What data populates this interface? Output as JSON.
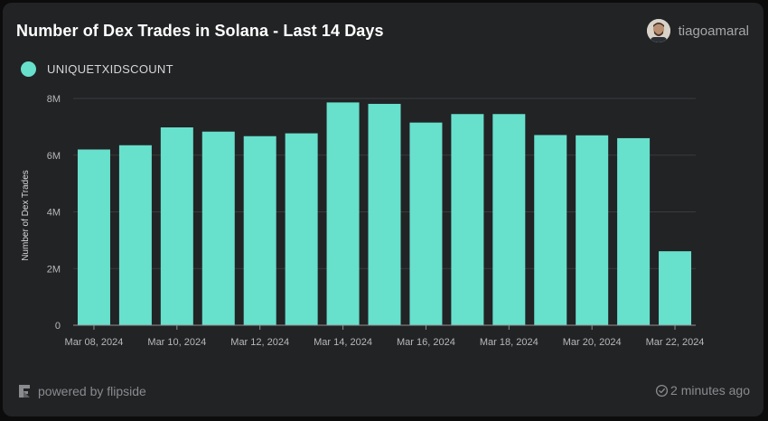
{
  "header": {
    "title": "Number of Dex Trades in Solana - Last 14 Days",
    "username": "tiagoamaral"
  },
  "footer": {
    "powered_by": "powered by flipside",
    "updated": "2 minutes ago"
  },
  "colors": {
    "bar": "#67e0cc",
    "grid": "#3a3b3e",
    "axis_text": "#b7b8bb"
  },
  "chart_data": {
    "type": "bar",
    "title": "Number of Dex Trades in Solana - Last 14 Days",
    "legend": "UNIQUETXIDSCOUNT",
    "xlabel": "",
    "ylabel": "Number of Dex Trades",
    "ylim": [
      0,
      8000000
    ],
    "yticks": [
      {
        "value": 0,
        "label": "0"
      },
      {
        "value": 2000000,
        "label": "2M"
      },
      {
        "value": 4000000,
        "label": "4M"
      },
      {
        "value": 6000000,
        "label": "6M"
      },
      {
        "value": 8000000,
        "label": "8M"
      }
    ],
    "categories": [
      "Mar 08, 2024",
      "Mar 09, 2024",
      "Mar 10, 2024",
      "Mar 11, 2024",
      "Mar 12, 2024",
      "Mar 13, 2024",
      "Mar 14, 2024",
      "Mar 15, 2024",
      "Mar 16, 2024",
      "Mar 17, 2024",
      "Mar 18, 2024",
      "Mar 19, 2024",
      "Mar 20, 2024",
      "Mar 21, 2024",
      "Mar 22, 2024"
    ],
    "xtick_labels": [
      {
        "index": 0,
        "label": "Mar 08, 2024"
      },
      {
        "index": 2,
        "label": "Mar 10, 2024"
      },
      {
        "index": 4,
        "label": "Mar 12, 2024"
      },
      {
        "index": 6,
        "label": "Mar 14, 2024"
      },
      {
        "index": 8,
        "label": "Mar 16, 2024"
      },
      {
        "index": 10,
        "label": "Mar 18, 2024"
      },
      {
        "index": 12,
        "label": "Mar 20, 2024"
      },
      {
        "index": 14,
        "label": "Mar 22, 2024"
      }
    ],
    "values": [
      6200000,
      6350000,
      6980000,
      6830000,
      6670000,
      6770000,
      7860000,
      7810000,
      7150000,
      7450000,
      7450000,
      6710000,
      6700000,
      6600000,
      2610000
    ]
  }
}
